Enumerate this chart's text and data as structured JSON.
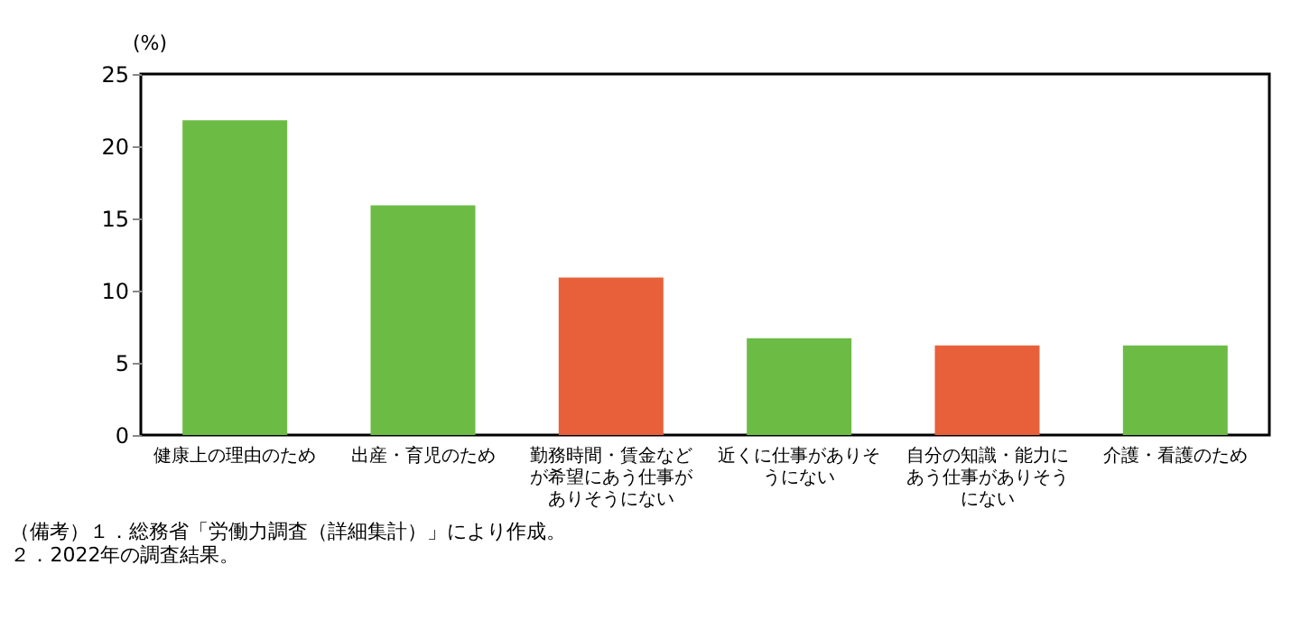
{
  "chart_data": {
    "type": "bar",
    "categories": [
      "健康上の理由のため",
      "出産・育児のため",
      "勤務時間・賃金などが希望にあう仕事がありそうにない",
      "近くに仕事がありそうにない",
      "自分の知識・能力にあう仕事がありそうにない",
      "介護・看護のため"
    ],
    "values": [
      21.8,
      15.9,
      10.9,
      6.7,
      6.2,
      6.2
    ],
    "colors": [
      "#6cbb45",
      "#6cbb45",
      "#e8603a",
      "#6cbb45",
      "#e8603a",
      "#6cbb45"
    ],
    "ylabel": "(%)",
    "ylim": [
      0,
      25
    ],
    "yticks": [
      0,
      5,
      10,
      15,
      20,
      25
    ],
    "grid": false,
    "annotations": [
      "（備考）１．総務省「労働力調査（詳細集計）」により作成。",
      "２．2022年の調査結果。"
    ]
  }
}
